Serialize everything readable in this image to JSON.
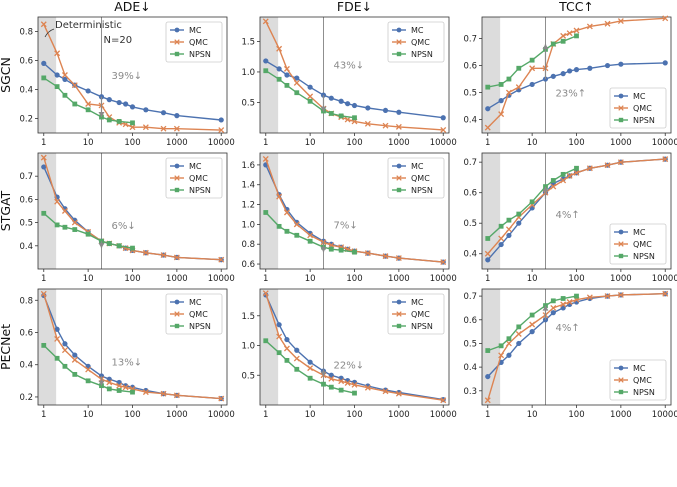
{
  "columns": [
    "ADE↓",
    "FDE↓",
    "TCC↑"
  ],
  "rows": [
    "SGCN",
    "STGAT",
    "PECNet"
  ],
  "x_tick_labels": [
    "1",
    "10",
    "100",
    "1000",
    "10000"
  ],
  "series_meta": [
    {
      "name": "MC",
      "color": "#4c72b0",
      "marker": "circle"
    },
    {
      "name": "QMC",
      "color": "#dd8452",
      "marker": "x"
    },
    {
      "name": "NPSN",
      "color": "#55a868",
      "marker": "square"
    }
  ],
  "annotations": {
    "deterministic": "Deterministic",
    "n20": "N=20"
  },
  "chart_data": [
    {
      "type": "line",
      "row": "SGCN",
      "col": "ADE↓",
      "xscale": "log",
      "ylim": [
        0.1,
        0.9
      ],
      "yticks": [
        0.2,
        0.4,
        0.6,
        0.8
      ],
      "ytick_labels": [
        "0.2",
        "0.4",
        "0.6",
        "0.8"
      ],
      "legend": "top-right",
      "pct_label": "39%↓",
      "pct_y": 0.5,
      "arrow": [
        0.35,
        0.21
      ],
      "series": [
        {
          "name": "MC",
          "x": [
            1,
            2,
            3,
            5,
            10,
            20,
            30,
            50,
            70,
            100,
            200,
            500,
            1000,
            10000
          ],
          "y": [
            0.58,
            0.5,
            0.47,
            0.43,
            0.39,
            0.35,
            0.33,
            0.31,
            0.3,
            0.28,
            0.26,
            0.24,
            0.22,
            0.19
          ]
        },
        {
          "name": "QMC",
          "x": [
            1,
            2,
            3,
            5,
            10,
            20,
            30,
            50,
            70,
            100,
            200,
            500,
            1000,
            10000
          ],
          "y": [
            0.85,
            0.65,
            0.5,
            0.43,
            0.3,
            0.29,
            0.21,
            0.17,
            0.16,
            0.14,
            0.14,
            0.13,
            0.13,
            0.12
          ]
        },
        {
          "name": "NPSN",
          "x": [
            1,
            2,
            3,
            5,
            10,
            20,
            30,
            50,
            100
          ],
          "y": [
            0.48,
            0.42,
            0.36,
            0.3,
            0.26,
            0.21,
            0.19,
            0.18,
            0.17
          ]
        }
      ]
    },
    {
      "type": "line",
      "row": "SGCN",
      "col": "FDE↓",
      "xscale": "log",
      "ylim": [
        0.0,
        1.9
      ],
      "yticks": [
        0.5,
        1.0,
        1.5
      ],
      "ytick_labels": [
        "0.5",
        "1.0",
        "1.5"
      ],
      "legend": "top-right",
      "pct_label": "43%↓",
      "pct_y": 1.12,
      "arrow": [
        0.62,
        0.35
      ],
      "series": [
        {
          "name": "MC",
          "x": [
            1,
            2,
            3,
            5,
            10,
            20,
            30,
            50,
            70,
            100,
            200,
            500,
            1000,
            10000
          ],
          "y": [
            1.18,
            1.05,
            0.95,
            0.9,
            0.75,
            0.62,
            0.57,
            0.52,
            0.48,
            0.45,
            0.41,
            0.37,
            0.34,
            0.25
          ]
        },
        {
          "name": "QMC",
          "x": [
            1,
            2,
            3,
            5,
            10,
            20,
            30,
            50,
            70,
            100,
            200,
            500,
            1000,
            10000
          ],
          "y": [
            1.83,
            1.38,
            1.05,
            0.82,
            0.6,
            0.4,
            0.32,
            0.26,
            0.22,
            0.19,
            0.15,
            0.12,
            0.1,
            0.05
          ]
        },
        {
          "name": "NPSN",
          "x": [
            1,
            2,
            3,
            5,
            10,
            20,
            30,
            50,
            100
          ],
          "y": [
            1.02,
            0.88,
            0.78,
            0.66,
            0.52,
            0.36,
            0.32,
            0.28,
            0.25
          ]
        }
      ]
    },
    {
      "type": "line",
      "row": "SGCN",
      "col": "TCC↑",
      "xscale": "log",
      "ylim": [
        0.35,
        0.78
      ],
      "yticks": [
        0.4,
        0.5,
        0.6,
        0.7
      ],
      "ytick_labels": [
        "0.4",
        "0.5",
        "0.6",
        "0.7"
      ],
      "legend": "bottom-right",
      "pct_label": "23%↑",
      "pct_y": 0.5,
      "arrow": [
        0.55,
        0.68
      ],
      "series": [
        {
          "name": "MC",
          "x": [
            1,
            2,
            3,
            5,
            10,
            20,
            30,
            50,
            70,
            100,
            200,
            500,
            1000,
            10000
          ],
          "y": [
            0.44,
            0.47,
            0.49,
            0.51,
            0.53,
            0.55,
            0.56,
            0.57,
            0.58,
            0.585,
            0.59,
            0.6,
            0.605,
            0.61
          ]
        },
        {
          "name": "QMC",
          "x": [
            1,
            2,
            3,
            5,
            10,
            20,
            30,
            50,
            70,
            100,
            200,
            500,
            1000,
            10000
          ],
          "y": [
            0.37,
            0.42,
            0.5,
            0.52,
            0.59,
            0.59,
            0.68,
            0.71,
            0.72,
            0.73,
            0.745,
            0.755,
            0.765,
            0.775
          ]
        },
        {
          "name": "NPSN",
          "x": [
            1,
            2,
            3,
            5,
            10,
            20,
            30,
            50,
            100
          ],
          "y": [
            0.52,
            0.53,
            0.55,
            0.59,
            0.62,
            0.66,
            0.68,
            0.69,
            0.71
          ]
        }
      ]
    },
    {
      "type": "line",
      "row": "STGAT",
      "col": "ADE↓",
      "xscale": "log",
      "ylim": [
        0.3,
        0.8
      ],
      "yticks": [
        0.4,
        0.5,
        0.6,
        0.7
      ],
      "ytick_labels": [
        "0.4",
        "0.5",
        "0.6",
        "0.7"
      ],
      "legend": "top-right",
      "pct_label": "6%↓",
      "pct_y": 0.49,
      "arrow": [
        0.42,
        0.39
      ],
      "series": [
        {
          "name": "MC",
          "x": [
            1,
            2,
            3,
            5,
            10,
            20,
            30,
            50,
            70,
            100,
            200,
            500,
            1000,
            10000
          ],
          "y": [
            0.74,
            0.61,
            0.56,
            0.51,
            0.46,
            0.42,
            0.41,
            0.4,
            0.39,
            0.38,
            0.37,
            0.36,
            0.35,
            0.34
          ]
        },
        {
          "name": "QMC",
          "x": [
            1,
            2,
            3,
            5,
            10,
            20,
            30,
            50,
            70,
            100,
            200,
            500,
            1000,
            10000
          ],
          "y": [
            0.78,
            0.59,
            0.55,
            0.5,
            0.46,
            0.42,
            0.41,
            0.4,
            0.39,
            0.38,
            0.37,
            0.36,
            0.35,
            0.34
          ]
        },
        {
          "name": "NPSN",
          "x": [
            1,
            2,
            3,
            5,
            10,
            20,
            30,
            50,
            100
          ],
          "y": [
            0.54,
            0.49,
            0.48,
            0.47,
            0.45,
            0.42,
            0.41,
            0.4,
            0.39
          ]
        }
      ]
    },
    {
      "type": "line",
      "row": "STGAT",
      "col": "FDE↓",
      "xscale": "log",
      "ylim": [
        0.55,
        1.72
      ],
      "yticks": [
        0.6,
        0.8,
        1.0,
        1.2,
        1.4,
        1.6
      ],
      "ytick_labels": [
        "0.6",
        "0.8",
        "1.0",
        "1.2",
        "1.4",
        "1.6"
      ],
      "legend": "top-right",
      "pct_label": "7%↓",
      "pct_y": 1.0,
      "arrow": [
        0.83,
        0.72
      ],
      "series": [
        {
          "name": "MC",
          "x": [
            1,
            2,
            3,
            5,
            10,
            20,
            30,
            50,
            70,
            100,
            200,
            500,
            1000,
            10000
          ],
          "y": [
            1.6,
            1.3,
            1.15,
            1.02,
            0.91,
            0.83,
            0.8,
            0.77,
            0.75,
            0.73,
            0.71,
            0.68,
            0.66,
            0.62
          ]
        },
        {
          "name": "QMC",
          "x": [
            1,
            2,
            3,
            5,
            10,
            20,
            30,
            50,
            70,
            100,
            200,
            500,
            1000,
            10000
          ],
          "y": [
            1.66,
            1.28,
            1.12,
            1.0,
            0.89,
            0.82,
            0.79,
            0.77,
            0.75,
            0.73,
            0.71,
            0.68,
            0.66,
            0.62
          ]
        },
        {
          "name": "NPSN",
          "x": [
            1,
            2,
            3,
            5,
            10,
            20,
            30,
            50,
            100
          ],
          "y": [
            1.12,
            0.98,
            0.93,
            0.89,
            0.83,
            0.77,
            0.75,
            0.74,
            0.72
          ]
        }
      ]
    },
    {
      "type": "line",
      "row": "STGAT",
      "col": "TCC↑",
      "xscale": "log",
      "ylim": [
        0.35,
        0.73
      ],
      "yticks": [
        0.4,
        0.5,
        0.6,
        0.7
      ],
      "ytick_labels": [
        "0.4",
        "0.5",
        "0.6",
        "0.7"
      ],
      "legend": "bottom-right",
      "pct_label": "4%↑",
      "pct_y": 0.53,
      "arrow": [
        0.58,
        0.62
      ],
      "series": [
        {
          "name": "MC",
          "x": [
            1,
            2,
            3,
            5,
            10,
            20,
            30,
            50,
            70,
            100,
            200,
            500,
            1000,
            10000
          ],
          "y": [
            0.38,
            0.43,
            0.46,
            0.5,
            0.55,
            0.6,
            0.63,
            0.645,
            0.655,
            0.665,
            0.68,
            0.69,
            0.7,
            0.71
          ]
        },
        {
          "name": "QMC",
          "x": [
            1,
            2,
            3,
            5,
            10,
            20,
            30,
            50,
            70,
            100,
            200,
            500,
            1000,
            10000
          ],
          "y": [
            0.4,
            0.45,
            0.48,
            0.52,
            0.56,
            0.6,
            0.62,
            0.64,
            0.655,
            0.665,
            0.68,
            0.69,
            0.7,
            0.71
          ]
        },
        {
          "name": "NPSN",
          "x": [
            1,
            2,
            3,
            5,
            10,
            20,
            30,
            50,
            100
          ],
          "y": [
            0.45,
            0.49,
            0.51,
            0.53,
            0.57,
            0.62,
            0.64,
            0.66,
            0.68
          ]
        }
      ]
    },
    {
      "type": "line",
      "row": "PECNet",
      "col": "ADE↓",
      "xscale": "log",
      "ylim": [
        0.15,
        0.87
      ],
      "yticks": [
        0.2,
        0.4,
        0.6,
        0.8
      ],
      "ytick_labels": [
        "0.2",
        "0.4",
        "0.6",
        "0.8"
      ],
      "legend": "top-right",
      "pct_label": "13%↓",
      "pct_y": 0.42,
      "arrow": [
        0.33,
        0.27
      ],
      "series": [
        {
          "name": "MC",
          "x": [
            1,
            2,
            3,
            5,
            10,
            20,
            30,
            50,
            70,
            100,
            200,
            500,
            1000,
            10000
          ],
          "y": [
            0.83,
            0.62,
            0.53,
            0.46,
            0.39,
            0.33,
            0.31,
            0.29,
            0.27,
            0.26,
            0.24,
            0.22,
            0.21,
            0.19
          ]
        },
        {
          "name": "QMC",
          "x": [
            1,
            2,
            3,
            5,
            10,
            20,
            30,
            50,
            70,
            100,
            200,
            500,
            1000,
            10000
          ],
          "y": [
            0.84,
            0.56,
            0.49,
            0.43,
            0.37,
            0.31,
            0.29,
            0.27,
            0.26,
            0.25,
            0.23,
            0.22,
            0.21,
            0.19
          ]
        },
        {
          "name": "NPSN",
          "x": [
            1,
            2,
            3,
            5,
            10,
            20,
            30,
            50,
            100
          ],
          "y": [
            0.52,
            0.44,
            0.39,
            0.34,
            0.3,
            0.27,
            0.25,
            0.24,
            0.23
          ]
        }
      ]
    },
    {
      "type": "line",
      "row": "PECNet",
      "col": "FDE↓",
      "xscale": "log",
      "ylim": [
        0.0,
        1.95
      ],
      "yticks": [
        0.5,
        1.0,
        1.5
      ],
      "ytick_labels": [
        "0.5",
        "1.0",
        "1.5"
      ],
      "legend": "top-right",
      "pct_label": "22%↓",
      "pct_y": 0.68,
      "arrow": [
        0.6,
        0.48
      ],
      "series": [
        {
          "name": "MC",
          "x": [
            1,
            2,
            3,
            5,
            10,
            20,
            30,
            50,
            70,
            100,
            200,
            500,
            1000,
            10000
          ],
          "y": [
            1.85,
            1.35,
            1.1,
            0.92,
            0.72,
            0.57,
            0.5,
            0.45,
            0.41,
            0.38,
            0.32,
            0.25,
            0.21,
            0.09
          ]
        },
        {
          "name": "QMC",
          "x": [
            1,
            2,
            3,
            5,
            10,
            20,
            30,
            50,
            70,
            100,
            200,
            500,
            1000,
            10000
          ],
          "y": [
            1.88,
            1.15,
            0.95,
            0.78,
            0.62,
            0.5,
            0.44,
            0.4,
            0.37,
            0.34,
            0.29,
            0.23,
            0.19,
            0.08
          ]
        },
        {
          "name": "NPSN",
          "x": [
            1,
            2,
            3,
            5,
            10,
            20,
            30,
            50,
            100
          ],
          "y": [
            1.08,
            0.88,
            0.75,
            0.6,
            0.45,
            0.35,
            0.3,
            0.25,
            0.2
          ]
        }
      ]
    },
    {
      "type": "line",
      "row": "PECNet",
      "col": "TCC↑",
      "xscale": "log",
      "ylim": [
        0.24,
        0.73
      ],
      "yticks": [
        0.3,
        0.4,
        0.5,
        0.6,
        0.7
      ],
      "ytick_labels": [
        "0.3",
        "0.4",
        "0.5",
        "0.6",
        "0.7"
      ],
      "legend": "bottom-right",
      "pct_label": "4%↑",
      "pct_y": 0.57,
      "arrow": [
        0.6,
        0.66
      ],
      "series": [
        {
          "name": "MC",
          "x": [
            1,
            2,
            3,
            5,
            10,
            20,
            30,
            50,
            70,
            100,
            200,
            500,
            1000,
            10000
          ],
          "y": [
            0.36,
            0.42,
            0.45,
            0.5,
            0.55,
            0.6,
            0.63,
            0.65,
            0.665,
            0.675,
            0.69,
            0.7,
            0.705,
            0.71
          ]
        },
        {
          "name": "QMC",
          "x": [
            1,
            2,
            3,
            5,
            10,
            20,
            30,
            50,
            70,
            100,
            200,
            500,
            1000,
            10000
          ],
          "y": [
            0.26,
            0.45,
            0.5,
            0.54,
            0.58,
            0.62,
            0.65,
            0.665,
            0.675,
            0.685,
            0.695,
            0.7,
            0.705,
            0.71
          ]
        },
        {
          "name": "NPSN",
          "x": [
            1,
            2,
            3,
            5,
            10,
            20,
            30,
            50,
            100
          ],
          "y": [
            0.47,
            0.49,
            0.52,
            0.57,
            0.62,
            0.66,
            0.68,
            0.69,
            0.7
          ]
        }
      ]
    }
  ]
}
